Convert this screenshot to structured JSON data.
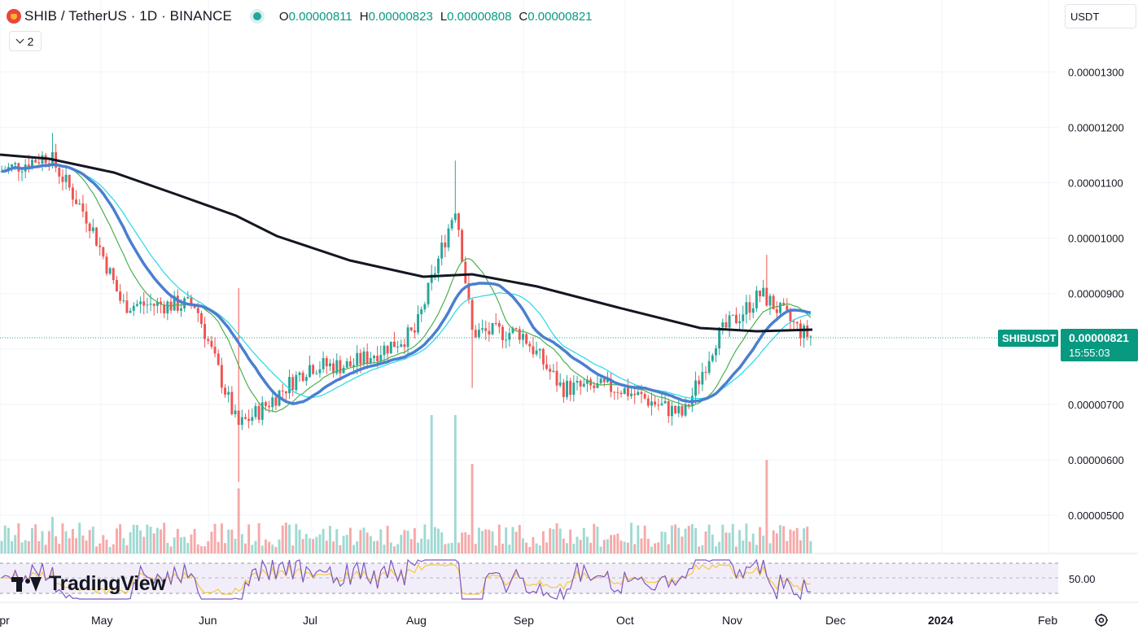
{
  "header": {
    "symbol_title": "SHIB / TetherUS · 1D · BINANCE",
    "open_label": "O",
    "open_value": "0.00000811",
    "high_label": "H",
    "high_value": "0.00000823",
    "low_label": "L",
    "low_value": "0.00000808",
    "close_label": "C",
    "close_value": "0.00000821",
    "indicator_toggle_count": "2",
    "currency": "USDT"
  },
  "brand": {
    "name": "TradingView"
  },
  "price_axis": {
    "ticks": [
      "0.00001300",
      "0.00001200",
      "0.00001100",
      "0.00001000",
      "0.00000900",
      "0.00000700",
      "0.00000600",
      "0.00000500"
    ]
  },
  "price_tag": {
    "symbol": "SHIBUSDT",
    "price": "0.00000821",
    "countdown": "15:55:03"
  },
  "rsi_axis": {
    "label": "50.00"
  },
  "time_axis": {
    "labels": [
      "Apr",
      "May",
      "Jun",
      "Jul",
      "Aug",
      "Sep",
      "Oct",
      "Nov",
      "Dec",
      "2024",
      "Feb"
    ]
  },
  "colors": {
    "up": "#26a69a",
    "down": "#ef5350",
    "ma_long": "#131722",
    "ma_mid": "#4a7fd0",
    "ma_fast": "#4caf50",
    "ma_cyan": "#26d7e6",
    "rsi": "#7e57c2"
  },
  "chart_data": {
    "type": "candlestick",
    "symbol": "SHIBUSDT",
    "interval": "1D",
    "ylim": [
      4.5e-06,
      1.36e-05
    ],
    "anchors": [
      {
        "date": "Apr",
        "close": 1.12e-05
      },
      {
        "date": "Apr mid",
        "close": 1.15e-05
      },
      {
        "date": "May",
        "close": 1.03e-05
      },
      {
        "date": "May mid",
        "close": 8.8e-06
      },
      {
        "date": "Jun",
        "close": 8.8e-06
      },
      {
        "date": "Jun 10",
        "close": 6.6e-06
      },
      {
        "date": "Jun mid",
        "close": 6.9e-06
      },
      {
        "date": "Jul",
        "close": 7.7e-06
      },
      {
        "date": "Jul mid",
        "close": 7.7e-06
      },
      {
        "date": "Aug",
        "close": 8.3e-06
      },
      {
        "date": "Aug 10",
        "close": 1.06e-05
      },
      {
        "date": "Aug 17",
        "close": 8.3e-06
      },
      {
        "date": "Sep",
        "close": 8.3e-06
      },
      {
        "date": "Sep mid",
        "close": 7.3e-06
      },
      {
        "date": "Oct",
        "close": 7.3e-06
      },
      {
        "date": "Oct mid",
        "close": 6.8e-06
      },
      {
        "date": "Oct end",
        "close": 8.2e-06
      },
      {
        "date": "Nov 10",
        "close": 9e-06
      },
      {
        "date": "Nov 20",
        "close": 8.3e-06
      },
      {
        "date": "Nov 24",
        "close": 8.21e-06
      }
    ]
  }
}
